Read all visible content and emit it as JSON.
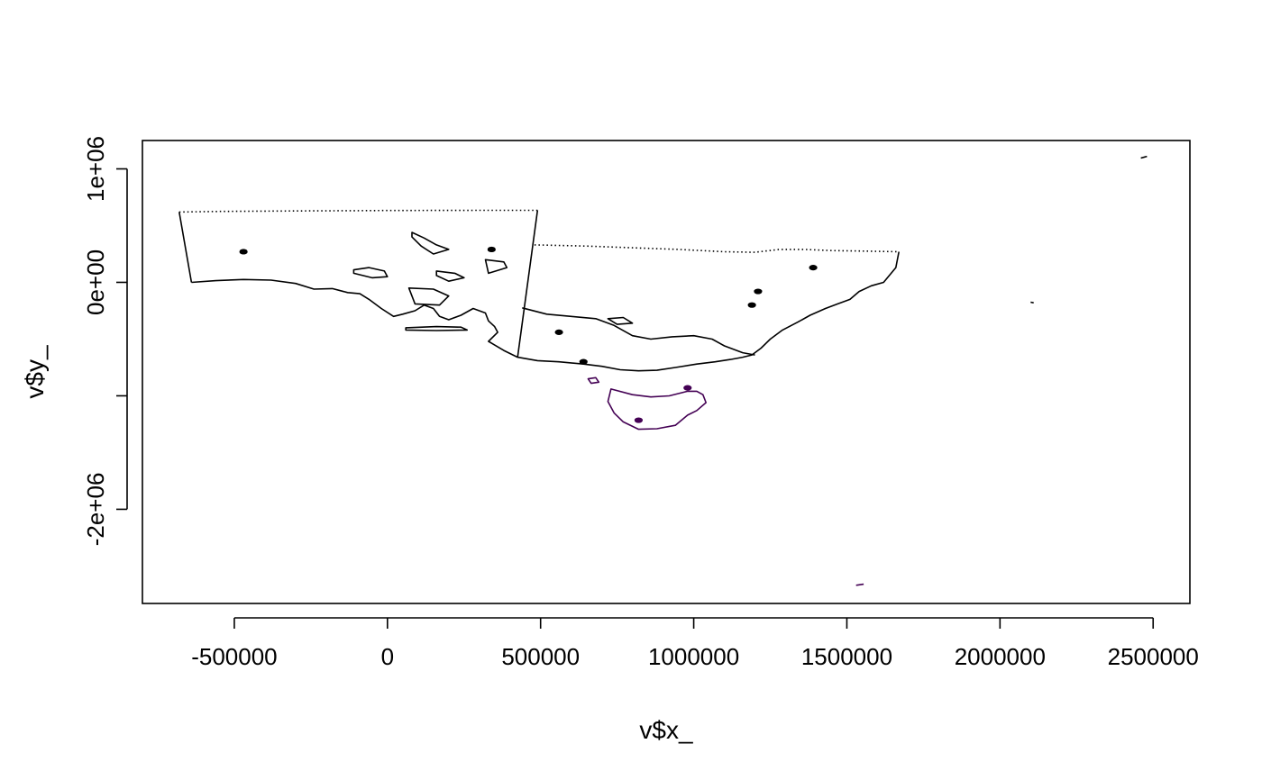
{
  "chart_data": {
    "type": "line",
    "xlabel": "v$x_",
    "ylabel": "v$y_",
    "xlim": [
      -800000,
      2620000
    ],
    "ylim": [
      -2830000,
      1250000
    ],
    "xticks": [
      -500000,
      0,
      500000,
      1000000,
      1500000,
      2000000,
      2500000
    ],
    "xtick_labels": [
      "-500000",
      "0",
      "500000",
      "1000000",
      "1500000",
      "2000000",
      "2500000"
    ],
    "yticks": [
      -2000000,
      0,
      1000000
    ],
    "ytick_labels": [
      "-2e+06",
      "0e+00",
      "1e+06"
    ],
    "minor_yticks": [
      -1000000
    ],
    "grid": false,
    "legend": "none",
    "colors": {
      "default": "#000000",
      "tasmania": "#440154"
    },
    "series": [
      {
        "id": "sa_outline",
        "color": "#000000",
        "style": "dotted-top",
        "points": [
          [
            -680000,
            620000
          ],
          [
            -540000,
            625000
          ],
          [
            -400000,
            628000
          ],
          [
            -250000,
            630000
          ],
          [
            -100000,
            632000
          ],
          [
            0,
            633000
          ],
          [
            150000,
            634000
          ],
          [
            300000,
            635000
          ],
          [
            490000,
            635000
          ]
        ],
        "closed": false
      },
      {
        "id": "sa_west_edge",
        "color": "#000000",
        "points": [
          [
            -680000,
            620000
          ],
          [
            -640000,
            0
          ]
        ],
        "closed": false
      },
      {
        "id": "sa_east_edge",
        "color": "#000000",
        "points": [
          [
            490000,
            635000
          ],
          [
            425000,
            -660000
          ]
        ],
        "closed": false
      },
      {
        "id": "sa_coast",
        "color": "#000000",
        "points": [
          [
            -640000,
            0
          ],
          [
            -560000,
            15000
          ],
          [
            -470000,
            25000
          ],
          [
            -380000,
            20000
          ],
          [
            -300000,
            -10000
          ],
          [
            -240000,
            -60000
          ],
          [
            -180000,
            -55000
          ],
          [
            -130000,
            -90000
          ],
          [
            -90000,
            -100000
          ],
          [
            -60000,
            -150000
          ],
          [
            -20000,
            -230000
          ],
          [
            20000,
            -300000
          ],
          [
            50000,
            -280000
          ],
          [
            90000,
            -250000
          ],
          [
            120000,
            -200000
          ],
          [
            150000,
            -230000
          ],
          [
            170000,
            -300000
          ],
          [
            200000,
            -330000
          ],
          [
            240000,
            -290000
          ],
          [
            280000,
            -230000
          ],
          [
            320000,
            -270000
          ],
          [
            330000,
            -340000
          ],
          [
            350000,
            -390000
          ],
          [
            360000,
            -440000
          ],
          [
            330000,
            -520000
          ],
          [
            380000,
            -600000
          ],
          [
            425000,
            -660000
          ],
          [
            490000,
            -690000
          ],
          [
            560000,
            -700000
          ],
          [
            640000,
            -720000
          ],
          [
            700000,
            -740000
          ],
          [
            760000,
            -770000
          ],
          [
            820000,
            -780000
          ],
          [
            880000,
            -775000
          ],
          [
            940000,
            -750000
          ],
          [
            1010000,
            -720000
          ],
          [
            1070000,
            -700000
          ],
          [
            1120000,
            -680000
          ],
          [
            1160000,
            -660000
          ],
          [
            1190000,
            -640000
          ],
          [
            1220000,
            -580000
          ],
          [
            1250000,
            -500000
          ],
          [
            1290000,
            -420000
          ],
          [
            1340000,
            -350000
          ],
          [
            1380000,
            -290000
          ],
          [
            1430000,
            -230000
          ],
          [
            1470000,
            -190000
          ],
          [
            1510000,
            -150000
          ],
          [
            1540000,
            -80000
          ],
          [
            1580000,
            -30000
          ],
          [
            1620000,
            0
          ],
          [
            1660000,
            130000
          ],
          [
            1670000,
            270000
          ]
        ],
        "closed": false
      },
      {
        "id": "nsw_border",
        "color": "#000000",
        "style": "dotted-top",
        "points": [
          [
            480000,
            330000
          ],
          [
            650000,
            320000
          ],
          [
            800000,
            305000
          ],
          [
            950000,
            290000
          ],
          [
            1100000,
            270000
          ],
          [
            1200000,
            265000
          ],
          [
            1280000,
            290000
          ],
          [
            1360000,
            290000
          ],
          [
            1450000,
            280000
          ],
          [
            1560000,
            275000
          ],
          [
            1670000,
            270000
          ]
        ],
        "closed": false
      },
      {
        "id": "vic_outline",
        "color": "#000000",
        "points": [
          [
            440000,
            -225000
          ],
          [
            520000,
            -280000
          ],
          [
            600000,
            -300000
          ],
          [
            680000,
            -320000
          ],
          [
            740000,
            -380000
          ],
          [
            800000,
            -470000
          ],
          [
            860000,
            -500000
          ],
          [
            930000,
            -480000
          ],
          [
            1000000,
            -470000
          ],
          [
            1060000,
            -500000
          ],
          [
            1100000,
            -560000
          ],
          [
            1160000,
            -620000
          ],
          [
            1200000,
            -640000
          ]
        ],
        "closed": false
      },
      {
        "id": "tasmania",
        "color": "#440154",
        "points": [
          [
            730000,
            -940000
          ],
          [
            800000,
            -990000
          ],
          [
            860000,
            -1010000
          ],
          [
            920000,
            -1000000
          ],
          [
            980000,
            -960000
          ],
          [
            1010000,
            -960000
          ],
          [
            1030000,
            -990000
          ],
          [
            1040000,
            -1060000
          ],
          [
            1010000,
            -1130000
          ],
          [
            980000,
            -1170000
          ],
          [
            940000,
            -1260000
          ],
          [
            880000,
            -1290000
          ],
          [
            820000,
            -1295000
          ],
          [
            770000,
            -1230000
          ],
          [
            740000,
            -1150000
          ],
          [
            720000,
            -1050000
          ],
          [
            730000,
            -940000
          ]
        ],
        "closed": true
      },
      {
        "id": "king_island",
        "color": "#440154",
        "points": [
          [
            655000,
            -850000
          ],
          [
            680000,
            -840000
          ],
          [
            690000,
            -880000
          ],
          [
            665000,
            -890000
          ],
          [
            655000,
            -850000
          ]
        ],
        "closed": true
      },
      {
        "id": "kangaroo_island",
        "color": "#000000",
        "points": [
          [
            60000,
            -400000
          ],
          [
            160000,
            -390000
          ],
          [
            240000,
            -395000
          ],
          [
            260000,
            -420000
          ],
          [
            160000,
            -425000
          ],
          [
            60000,
            -420000
          ],
          [
            60000,
            -400000
          ]
        ],
        "closed": true
      },
      {
        "id": "lake_torrens",
        "color": "#000000",
        "points": [
          [
            80000,
            440000
          ],
          [
            120000,
            390000
          ],
          [
            160000,
            330000
          ],
          [
            200000,
            290000
          ],
          [
            150000,
            250000
          ],
          [
            110000,
            320000
          ],
          [
            80000,
            400000
          ],
          [
            80000,
            440000
          ]
        ],
        "closed": true
      },
      {
        "id": "lake_eyre_south",
        "color": "#000000",
        "points": [
          [
            -110000,
            110000
          ],
          [
            -60000,
            130000
          ],
          [
            -10000,
            100000
          ],
          [
            0,
            50000
          ],
          [
            -50000,
            40000
          ],
          [
            -110000,
            80000
          ],
          [
            -110000,
            110000
          ]
        ],
        "closed": true
      },
      {
        "id": "lake_gairdner",
        "color": "#000000",
        "points": [
          [
            320000,
            200000
          ],
          [
            380000,
            180000
          ],
          [
            390000,
            130000
          ],
          [
            330000,
            80000
          ],
          [
            320000,
            200000
          ]
        ],
        "closed": true
      },
      {
        "id": "lake_frome",
        "color": "#000000",
        "points": [
          [
            720000,
            -320000
          ],
          [
            770000,
            -310000
          ],
          [
            800000,
            -360000
          ],
          [
            750000,
            -370000
          ],
          [
            720000,
            -320000
          ]
        ],
        "closed": true
      },
      {
        "id": "spencer_gulf_inner",
        "color": "#000000",
        "points": [
          [
            70000,
            -50000
          ],
          [
            150000,
            -60000
          ],
          [
            200000,
            -120000
          ],
          [
            170000,
            -200000
          ],
          [
            90000,
            -190000
          ],
          [
            70000,
            -50000
          ]
        ],
        "closed": true
      },
      {
        "id": "gulf_islands",
        "color": "#000000",
        "points": [
          [
            160000,
            100000
          ],
          [
            220000,
            80000
          ],
          [
            250000,
            40000
          ],
          [
            200000,
            10000
          ],
          [
            160000,
            60000
          ],
          [
            160000,
            100000
          ]
        ],
        "closed": true
      },
      {
        "id": "top_ne_island",
        "color": "#000000",
        "points": [
          [
            2460000,
            1095000
          ],
          [
            2480000,
            1110000
          ]
        ],
        "closed": false
      },
      {
        "id": "bottom_island",
        "color": "#440154",
        "points": [
          [
            1530000,
            -2670000
          ],
          [
            1555000,
            -2660000
          ]
        ],
        "closed": false
      },
      {
        "id": "east_dot",
        "color": "#000000",
        "points": [
          [
            2100000,
            -175000
          ],
          [
            2110000,
            -180000
          ]
        ],
        "closed": false
      }
    ],
    "blobs": [
      {
        "x": -470000,
        "y": 270000,
        "color": "#000000"
      },
      {
        "x": 340000,
        "y": 290000,
        "color": "#000000"
      },
      {
        "x": 560000,
        "y": -440000,
        "color": "#000000"
      },
      {
        "x": 640000,
        "y": -700000,
        "color": "#000000"
      },
      {
        "x": 1190000,
        "y": -200000,
        "color": "#000000"
      },
      {
        "x": 1210000,
        "y": -80000,
        "color": "#000000"
      },
      {
        "x": 1390000,
        "y": 130000,
        "color": "#000000"
      },
      {
        "x": 820000,
        "y": -1215000,
        "color": "#440154"
      },
      {
        "x": 980000,
        "y": -930000,
        "color": "#440154"
      }
    ]
  }
}
